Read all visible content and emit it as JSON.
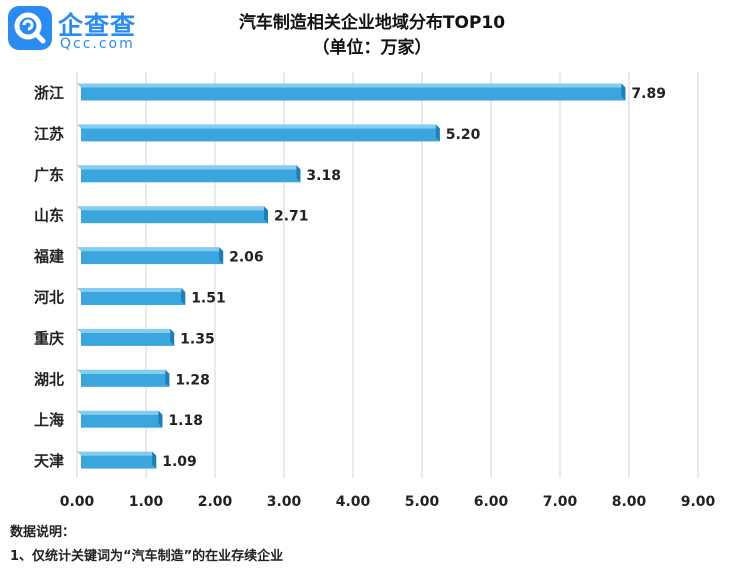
{
  "brand": {
    "name": "企查查",
    "domain": "Qcc.com",
    "color": "#2a8cf0"
  },
  "chart_data": {
    "type": "bar",
    "orientation": "horizontal",
    "title": "汽车制造相关企业地域分布TOP10",
    "subtitle": "（单位：万家）",
    "categories": [
      "浙江",
      "江苏",
      "广东",
      "山东",
      "福建",
      "河北",
      "重庆",
      "湖北",
      "上海",
      "天津"
    ],
    "values": [
      7.89,
      5.2,
      3.18,
      2.71,
      2.06,
      1.51,
      1.35,
      1.28,
      1.18,
      1.09
    ],
    "value_labels": [
      "7.89",
      "5.20",
      "3.18",
      "2.71",
      "2.06",
      "1.51",
      "1.35",
      "1.28",
      "1.18",
      "1.09"
    ],
    "xlim": [
      0,
      9
    ],
    "xticks": [
      "0.00",
      "1.00",
      "2.00",
      "3.00",
      "4.00",
      "5.00",
      "6.00",
      "7.00",
      "8.00",
      "9.00"
    ],
    "grid": "vertical",
    "bar_color": "#3aa6dd",
    "bar_top_color": "#86ccf0",
    "bar_side_color": "#1f7fb5"
  },
  "notes": {
    "heading": "数据说明：",
    "lines": [
      "1、仅统计关键词为“汽车制造”的在业存续企业"
    ]
  }
}
